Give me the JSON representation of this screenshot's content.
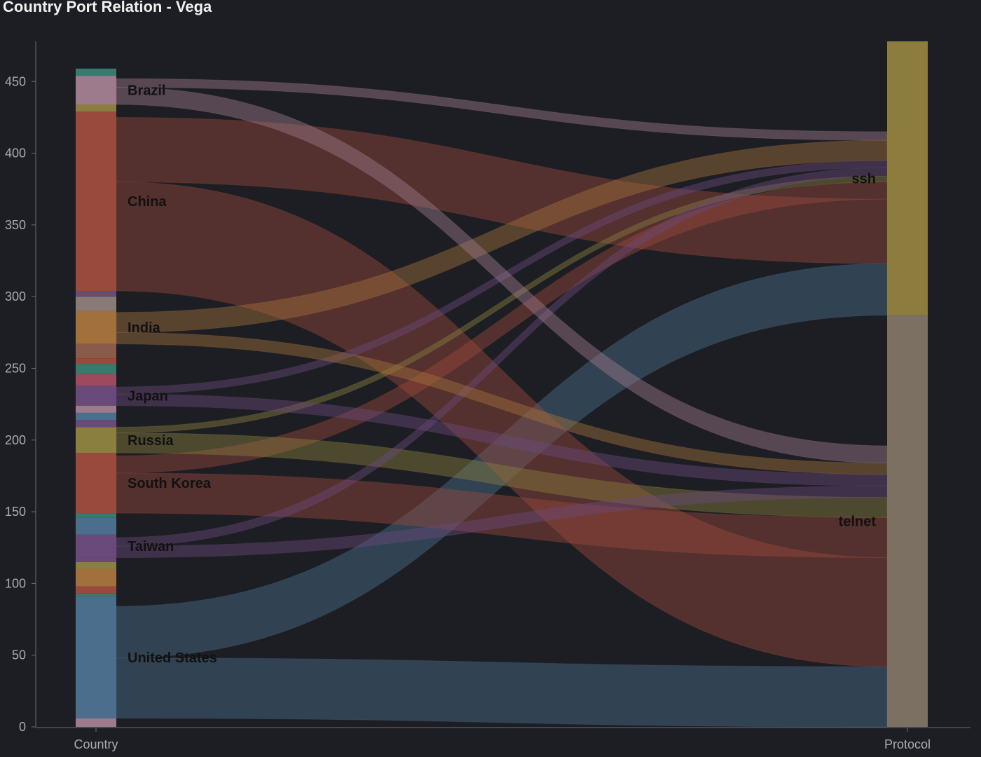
{
  "title": "Country Port Relation - Vega",
  "chart_data": {
    "type": "sankey",
    "title": "Country Port Relation - Vega",
    "axes": [
      "Country",
      "Protocol"
    ],
    "ylim": [
      0,
      478
    ],
    "yticks": [
      0,
      50,
      100,
      150,
      200,
      250,
      300,
      350,
      400,
      450
    ],
    "grid": false,
    "stacks": {
      "Country": [
        {
          "name": "",
          "value": 6,
          "color": "#9e7b8c"
        },
        {
          "name": "United States",
          "value": 85,
          "color": "#4b6e8c"
        },
        {
          "name": "",
          "value": 2,
          "color": "#3a7a6c"
        },
        {
          "name": "",
          "value": 5,
          "color": "#9a4a3c"
        },
        {
          "name": "",
          "value": 12,
          "color": "#a2703c"
        },
        {
          "name": "",
          "value": 5,
          "color": "#8a7f3f"
        },
        {
          "name": "",
          "value": 3,
          "color": "#6a4a7a"
        },
        {
          "name": "Taiwan",
          "value": 16,
          "color": "#6a4a7a"
        },
        {
          "name": "",
          "value": 12,
          "color": "#4b6e8c"
        },
        {
          "name": "",
          "value": 3,
          "color": "#3a7a6c"
        },
        {
          "name": "South Korea",
          "value": 42,
          "color": "#9a4a3c"
        },
        {
          "name": "Russia",
          "value": 18,
          "color": "#8a7f3f"
        },
        {
          "name": "",
          "value": 5,
          "color": "#6a4a7a"
        },
        {
          "name": "",
          "value": 5,
          "color": "#4b6e8c"
        },
        {
          "name": "",
          "value": 5,
          "color": "#9e7b8c"
        },
        {
          "name": "Japan",
          "value": 14,
          "color": "#6a4a7a"
        },
        {
          "name": "",
          "value": 8,
          "color": "#9e4a5c"
        },
        {
          "name": "",
          "value": 7,
          "color": "#3a7a6c"
        },
        {
          "name": "",
          "value": 4,
          "color": "#9a4a3c"
        },
        {
          "name": "",
          "value": 10,
          "color": "#8a5a4a"
        },
        {
          "name": "India",
          "value": 23,
          "color": "#a2703c"
        },
        {
          "name": "",
          "value": 10,
          "color": "#8a7a76"
        },
        {
          "name": "",
          "value": 4,
          "color": "#6a4a7a"
        },
        {
          "name": "China",
          "value": 125,
          "color": "#9a4a3c"
        },
        {
          "name": "",
          "value": 5,
          "color": "#8a7f3f"
        },
        {
          "name": "Brazil",
          "value": 20,
          "color": "#9e7b8c"
        },
        {
          "name": "",
          "value": 5,
          "color": "#3a7a6c"
        }
      ],
      "Protocol": [
        {
          "name": "telnet",
          "value": 287,
          "color": "#7c7063"
        },
        {
          "name": "ssh",
          "value": 191,
          "color": "#8c7d3e"
        }
      ]
    },
    "flows": [
      {
        "source": "United States",
        "target": "telnet",
        "value": 42
      },
      {
        "source": "United States",
        "target": "ssh",
        "value": 36
      },
      {
        "source": "China",
        "target": "telnet",
        "value": 76
      },
      {
        "source": "China",
        "target": "ssh",
        "value": 45
      },
      {
        "source": "South Korea",
        "target": "telnet",
        "value": 28
      },
      {
        "source": "South Korea",
        "target": "ssh",
        "value": 12
      },
      {
        "source": "Russia",
        "target": "telnet",
        "value": 14
      },
      {
        "source": "Russia",
        "target": "ssh",
        "value": 4
      },
      {
        "source": "Taiwan",
        "target": "telnet",
        "value": 8
      },
      {
        "source": "Taiwan",
        "target": "ssh",
        "value": 6
      },
      {
        "source": "Japan",
        "target": "telnet",
        "value": 8
      },
      {
        "source": "Japan",
        "target": "ssh",
        "value": 5
      },
      {
        "source": "India",
        "target": "telnet",
        "value": 8
      },
      {
        "source": "India",
        "target": "ssh",
        "value": 14
      },
      {
        "source": "Brazil",
        "target": "telnet",
        "value": 12
      },
      {
        "source": "Brazil",
        "target": "ssh",
        "value": 6
      }
    ]
  }
}
